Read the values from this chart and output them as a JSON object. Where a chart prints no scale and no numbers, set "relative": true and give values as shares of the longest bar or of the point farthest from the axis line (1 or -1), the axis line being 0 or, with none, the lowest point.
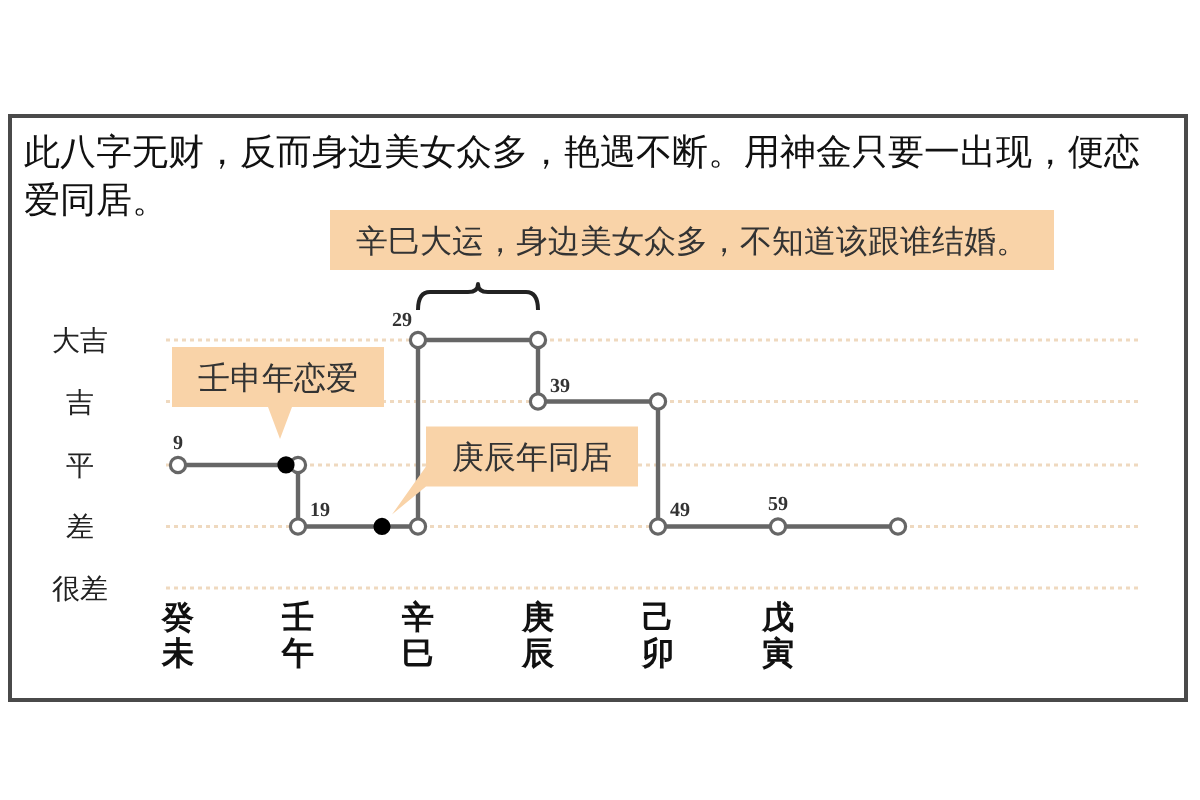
{
  "chart_data": {
    "type": "step",
    "relative": true,
    "title": "此八字无财，反而身边美女众多，艳遇不断。用神金只要一出现，便恋爱同居。",
    "categories": [
      "癸未",
      null,
      null,
      null,
      null,
      null,
      null,
      null,
      null,
      null,
      "壬午",
      null,
      null,
      null,
      null,
      null,
      null,
      null,
      null,
      null,
      "辛巳",
      null,
      null,
      null,
      null,
      null,
      null,
      null,
      null,
      null,
      "庚辰",
      null,
      null,
      null,
      null,
      null,
      null,
      null,
      null,
      null,
      "己卯",
      null,
      null,
      null,
      null,
      null,
      null,
      null,
      null,
      null,
      "戊寅",
      null,
      null,
      null,
      null,
      null,
      null,
      null,
      null,
      null,
      null
    ],
    "marker": "circle",
    "series": [
      {
        "color": "#666666",
        "values": [
          0.33,
          null,
          null,
          null,
          null,
          null,
          null,
          null,
          null,
          null,
          0,
          null,
          null,
          null,
          null,
          null,
          null,
          null,
          null,
          null,
          1,
          null,
          null,
          null,
          null,
          null,
          null,
          null,
          null,
          null,
          0.67,
          null,
          null,
          null,
          null,
          null,
          null,
          null,
          null,
          null,
          0,
          null,
          null,
          null,
          null,
          null,
          null,
          null,
          null,
          null,
          0,
          null,
          null,
          null,
          null,
          null,
          null,
          null,
          null,
          null,
          0
        ]
      },
      {
        "type": "scatter",
        "color": "#666666",
        "values": [
          null,
          null,
          null,
          null,
          null,
          null,
          null,
          null,
          null,
          null,
          0.33,
          null,
          null,
          null,
          null,
          null,
          null,
          null,
          null,
          null,
          0,
          null,
          null,
          null,
          null,
          null,
          null,
          null,
          null,
          null,
          1,
          null,
          null,
          null,
          null,
          null,
          null,
          null,
          null,
          null,
          0.67,
          null,
          null,
          null,
          null,
          null,
          null,
          null,
          null,
          null,
          null,
          null,
          null,
          null,
          null,
          null,
          null,
          null,
          null,
          null,
          null
        ]
      },
      {
        "type": "scatter",
        "color": "#000000",
        "values": [
          null,
          null,
          null,
          null,
          null,
          null,
          null,
          null,
          null,
          0.33,
          null,
          null,
          null,
          null,
          null,
          null,
          null,
          0,
          null,
          null,
          null,
          null,
          null,
          null,
          null,
          null,
          null,
          null,
          null,
          null,
          null,
          null,
          null,
          null,
          null,
          null,
          null,
          null,
          null,
          null,
          null,
          null,
          null,
          null,
          null,
          null,
          null,
          null,
          null,
          null,
          null,
          null,
          null,
          null,
          null,
          null,
          null,
          null,
          null,
          null,
          null
        ]
      }
    ],
    "ref_lines": [
      {
        "axis": "y",
        "value": 1,
        "label": "大吉",
        "color": "#efd9bf",
        "line_style": "dotted"
      },
      {
        "axis": "y",
        "value": 0.67,
        "label": "吉",
        "color": "#efd9bf",
        "line_style": "dotted"
      },
      {
        "axis": "y",
        "value": 0.33,
        "label": "平",
        "color": "#efd9bf",
        "line_style": "dotted"
      },
      {
        "axis": "y",
        "value": 0,
        "label": "差",
        "color": "#efd9bf",
        "line_style": "dotted"
      },
      {
        "axis": "y",
        "value": -0.33,
        "label": "很差",
        "color": "#efd9bf",
        "line_style": "dotted"
      }
    ],
    "annotations": [
      {
        "text": "9",
        "x": "癸未",
        "y": 0.33
      },
      {
        "text": "19",
        "x": "壬午",
        "y": 0
      },
      {
        "text": "29",
        "x": "辛巳",
        "y": 1
      },
      {
        "text": "39",
        "x": "庚辰",
        "y": 0.67
      },
      {
        "text": "49",
        "x": "己卯",
        "y": 0
      },
      {
        "text": "59",
        "x": "戊寅",
        "y": 0
      },
      {
        "text": "壬申年恋爱",
        "y": 0.33
      },
      {
        "text": "庚辰年同居",
        "y": 0
      },
      {
        "text": "辛巳大运，身边美女众多，不知道该跟谁结婚。",
        "x": "辛巳",
        "y": 1
      }
    ]
  }
}
